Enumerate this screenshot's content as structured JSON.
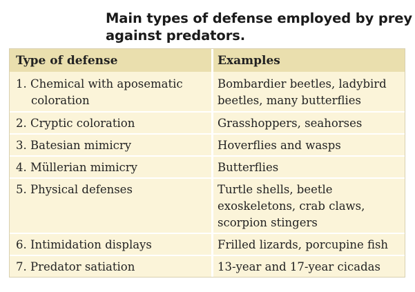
{
  "caption": "Main types of defense employed by prey against predators.",
  "table": {
    "headers": [
      "Type of defense",
      "Examples"
    ],
    "rows": [
      {
        "type_line1": "1. Chemical with aposematic",
        "type_line2": "coloration",
        "examples": "Bombardier beetles, ladybird beetles, many butterflies"
      },
      {
        "type_line1": "2. Cryptic coloration",
        "type_line2": "",
        "examples": "Grasshoppers, seahorses"
      },
      {
        "type_line1": "3. Batesian mimicry",
        "type_line2": "",
        "examples": "Hoverflies and wasps"
      },
      {
        "type_line1": "4. Müllerian mimicry",
        "type_line2": "",
        "examples": "Butterflies"
      },
      {
        "type_line1": "5. Physical defenses",
        "type_line2": "",
        "examples": "Turtle shells, beetle exoskeletons, crab claws, scorpion stingers"
      },
      {
        "type_line1": "6. Intimidation displays",
        "type_line2": "",
        "examples": "Frilled lizards, porcupine fish"
      },
      {
        "type_line1": "7. Predator satiation",
        "type_line2": "",
        "examples": "13-year and 17-year cicadas"
      }
    ]
  },
  "colors": {
    "header_bg": "#eadfae",
    "body_bg": "#fbf4d9",
    "divider": "#ffffff",
    "text": "#222222"
  }
}
